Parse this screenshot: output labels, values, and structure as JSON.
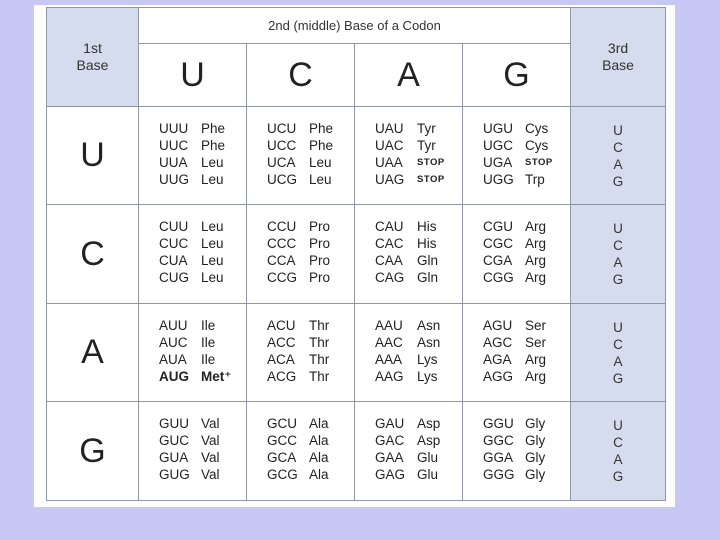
{
  "header": {
    "first_label_1": "1st",
    "first_label_2": "Base",
    "middle_title": "2nd (middle) Base of a Codon",
    "third_label_1": "3rd",
    "third_label_2": "Base",
    "middle_bases": [
      "U",
      "C",
      "A",
      "G"
    ]
  },
  "third_bases": [
    "U",
    "C",
    "A",
    "G"
  ],
  "rows": [
    {
      "base": "U",
      "cells": [
        [
          [
            "UUU",
            "Phe"
          ],
          [
            "UUC",
            "Phe"
          ],
          [
            "UUA",
            "Leu"
          ],
          [
            "UUG",
            "Leu"
          ]
        ],
        [
          [
            "UCU",
            "Phe"
          ],
          [
            "UCC",
            "Phe"
          ],
          [
            "UCA",
            "Leu"
          ],
          [
            "UCG",
            "Leu"
          ]
        ],
        [
          [
            "UAU",
            "Tyr"
          ],
          [
            "UAC",
            "Tyr"
          ],
          [
            "UAA",
            "STOP"
          ],
          [
            "UAG",
            "STOP"
          ]
        ],
        [
          [
            "UGU",
            "Cys"
          ],
          [
            "UGC",
            "Cys"
          ],
          [
            "UGA",
            "STOP"
          ],
          [
            "UGG",
            "Trp"
          ]
        ]
      ]
    },
    {
      "base": "C",
      "cells": [
        [
          [
            "CUU",
            "Leu"
          ],
          [
            "CUC",
            "Leu"
          ],
          [
            "CUA",
            "Leu"
          ],
          [
            "CUG",
            "Leu"
          ]
        ],
        [
          [
            "CCU",
            "Pro"
          ],
          [
            "CCC",
            "Pro"
          ],
          [
            "CCA",
            "Pro"
          ],
          [
            "CCG",
            "Pro"
          ]
        ],
        [
          [
            "CAU",
            "His"
          ],
          [
            "CAC",
            "His"
          ],
          [
            "CAA",
            "Gln"
          ],
          [
            "CAG",
            "Gln"
          ]
        ],
        [
          [
            "CGU",
            "Arg"
          ],
          [
            "CGC",
            "Arg"
          ],
          [
            "CGA",
            "Arg"
          ],
          [
            "CGG",
            "Arg"
          ]
        ]
      ]
    },
    {
      "base": "A",
      "cells": [
        [
          [
            "AUU",
            "Ile"
          ],
          [
            "AUC",
            "Ile"
          ],
          [
            "AUA",
            "Ile"
          ],
          [
            "AUG",
            "Met⁺"
          ]
        ],
        [
          [
            "ACU",
            "Thr"
          ],
          [
            "ACC",
            "Thr"
          ],
          [
            "ACA",
            "Thr"
          ],
          [
            "ACG",
            "Thr"
          ]
        ],
        [
          [
            "AAU",
            "Asn"
          ],
          [
            "AAC",
            "Asn"
          ],
          [
            "AAA",
            "Lys"
          ],
          [
            "AAG",
            "Lys"
          ]
        ],
        [
          [
            "AGU",
            "Ser"
          ],
          [
            "AGC",
            "Ser"
          ],
          [
            "AGA",
            "Arg"
          ],
          [
            "AGG",
            "Arg"
          ]
        ]
      ]
    },
    {
      "base": "G",
      "cells": [
        [
          [
            "GUU",
            "Val"
          ],
          [
            "GUC",
            "Val"
          ],
          [
            "GUA",
            "Val"
          ],
          [
            "GUG",
            "Val"
          ]
        ],
        [
          [
            "GCU",
            "Ala"
          ],
          [
            "GCC",
            "Ala"
          ],
          [
            "GCA",
            "Ala"
          ],
          [
            "GCG",
            "Ala"
          ]
        ],
        [
          [
            "GAU",
            "Asp"
          ],
          [
            "GAC",
            "Asp"
          ],
          [
            "GAA",
            "Glu"
          ],
          [
            "GAG",
            "Glu"
          ]
        ],
        [
          [
            "GGU",
            "Gly"
          ],
          [
            "GGC",
            "Gly"
          ],
          [
            "GGA",
            "Gly"
          ],
          [
            "GGG",
            "Gly"
          ]
        ]
      ]
    }
  ],
  "bold_codons": [
    "AUG"
  ],
  "colors": {
    "page_background": "#c8c8f4",
    "side_column": "#d4dcee",
    "grid_lines": "#8f97a4"
  }
}
